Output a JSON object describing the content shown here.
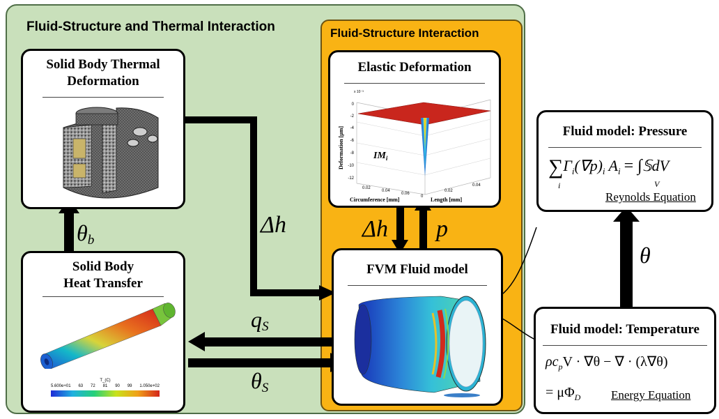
{
  "colors": {
    "outer_panel": "#c9e0bb",
    "fsi_panel": "#f9b314",
    "box_border": "#000000",
    "arrow": "#000000"
  },
  "panels": {
    "outer_title": "Fluid-Structure and Thermal Interaction",
    "fsi_title": "Fluid-Structure Interaction"
  },
  "boxes": {
    "solid_deformation": {
      "title_line1": "Solid Body Thermal",
      "title_line2": "Deformation",
      "image": "thermal-deformation-mesh"
    },
    "solid_heat": {
      "title_line1": "Solid Body",
      "title_line2": "Heat Transfer",
      "image": "temperature-contour-cylinder"
    },
    "elastic": {
      "title": "Elastic Deformation",
      "image": "deformation-surface-plot",
      "plot_label": "IM",
      "plot_label_sub": "i",
      "zlabel": "Deformation [μm]",
      "xlabel": "Circumference [mm]",
      "ylabel": "Length [mm]",
      "zticks": [
        "0",
        "-2",
        "-4",
        "-6",
        "-8",
        "-10",
        "-12"
      ],
      "xticks": [
        "0.02",
        "0.04",
        "0.06"
      ],
      "yticks": [
        "0",
        "0.02",
        "0.04"
      ],
      "scale": "x 10⁻³"
    },
    "fvm": {
      "title": "FVM Fluid model",
      "image": "pressure-contour-cylinder"
    },
    "pressure": {
      "title": "Fluid model: Pressure",
      "equation_sum": "∑",
      "equation_index": "i",
      "equation_body": "Γ",
      "equation_rest": "(∇p)",
      "equation_a": "A",
      "equation_rhs": "= ∫",
      "equation_integrand": "𝕊dV",
      "equation_limit": "V",
      "equation_name": "Reynolds Equation"
    },
    "temperature": {
      "title": "Fluid model: Temperature",
      "eq_line1": "ρc",
      "eq_line1_sub": "p",
      "eq_line1_rest": "V · ∇θ − ∇ · (λ∇θ)",
      "eq_line2": "= μΦ",
      "eq_line2_sub": "D",
      "equation_name": "Energy Equation"
    }
  },
  "legend": {
    "label": "T_(C)",
    "ticks": [
      "5.600e+01",
      "63",
      "72",
      "81",
      "90",
      "99",
      "1.050e+02"
    ]
  },
  "symbols": {
    "theta_b": "θ",
    "theta_b_sub": "b",
    "delta_h_main": "Δh",
    "delta_h_fsi": "Δh",
    "p": "p",
    "q_s": "q",
    "q_s_sub": "S",
    "theta_s": "θ",
    "theta_s_sub": "S",
    "theta": "θ"
  }
}
